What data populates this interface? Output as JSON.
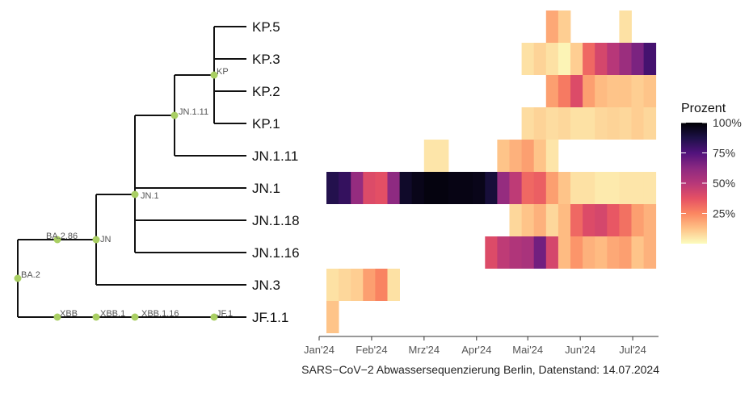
{
  "chart_data": {
    "type": "heatmap",
    "caption": "SARS−CoV−2 Abwassersequenzierung Berlin, Datenstand: 14.07.2024",
    "x_ticks": [
      "Jan'24",
      "Feb'24",
      "Mrz'24",
      "Apr'24",
      "Mai'24",
      "Jun'24",
      "Jul'24"
    ],
    "x_tick_weeks": [
      0,
      4.3,
      8.6,
      12.9,
      17.1,
      21.4,
      25.7
    ],
    "n_weeks": 27,
    "legend": {
      "title": "Prozent",
      "labels": [
        "100%",
        "75%",
        "50%",
        "25%"
      ],
      "values": [
        100,
        75,
        50,
        25
      ]
    },
    "colors": [
      "#fcfdbf",
      "#fec287",
      "#fb8761",
      "#e55064",
      "#b73779",
      "#8c2981",
      "#51127c",
      "#1d1147",
      "#000004"
    ],
    "tree": {
      "tips": [
        "KP.5",
        "KP.3",
        "KP.2",
        "KP.1",
        "JN.1.11",
        "JN.1",
        "JN.1.18",
        "JN.1.16",
        "JN.3",
        "JF.1.1"
      ],
      "node_labels": [
        "KP",
        "JN.1.11",
        "JN.1",
        "JN",
        "BA.2.86",
        "BA.2",
        "XBB",
        "XBB.1",
        "XBB.1.16",
        "JF.1"
      ]
    },
    "series": [
      {
        "name": "KP.5",
        "values": [
          null,
          null,
          null,
          null,
          null,
          null,
          null,
          null,
          null,
          null,
          null,
          null,
          null,
          null,
          null,
          null,
          null,
          null,
          18,
          10,
          null,
          null,
          null,
          null,
          6,
          null,
          null
        ]
      },
      {
        "name": "KP.3",
        "values": [
          null,
          null,
          null,
          null,
          null,
          null,
          null,
          null,
          null,
          null,
          null,
          null,
          null,
          null,
          null,
          null,
          6,
          9,
          6,
          2,
          10,
          32,
          42,
          50,
          58,
          66,
          78
        ]
      },
      {
        "name": "KP.2",
        "values": [
          null,
          null,
          null,
          null,
          null,
          null,
          null,
          null,
          null,
          null,
          null,
          null,
          null,
          null,
          null,
          null,
          null,
          null,
          20,
          28,
          40,
          20,
          14,
          12,
          12,
          10,
          12
        ]
      },
      {
        "name": "KP.1",
        "values": [
          null,
          null,
          null,
          null,
          null,
          null,
          null,
          null,
          null,
          null,
          null,
          null,
          null,
          null,
          null,
          null,
          7,
          9,
          7,
          8,
          6,
          6,
          8,
          9,
          8,
          10,
          8
        ]
      },
      {
        "name": "JN.1.11",
        "values": [
          null,
          null,
          null,
          null,
          null,
          null,
          null,
          null,
          5,
          5,
          null,
          null,
          null,
          null,
          12,
          16,
          20,
          12,
          5,
          null,
          null,
          null,
          null,
          null,
          null,
          null,
          null
        ]
      },
      {
        "name": "JN.1",
        "values": [
          86,
          82,
          60,
          40,
          38,
          62,
          93,
          96,
          98,
          98,
          97,
          97,
          96,
          90,
          60,
          48,
          32,
          34,
          20,
          12,
          6,
          6,
          4,
          4,
          5,
          5,
          5
        ]
      },
      {
        "name": "JN.1.18",
        "values": [
          null,
          null,
          null,
          null,
          null,
          null,
          null,
          null,
          null,
          null,
          null,
          null,
          null,
          null,
          null,
          8,
          12,
          16,
          8,
          14,
          32,
          40,
          42,
          36,
          30,
          20,
          16
        ]
      },
      {
        "name": "JN.1.16",
        "values": [
          null,
          null,
          null,
          null,
          null,
          null,
          null,
          null,
          null,
          null,
          null,
          null,
          null,
          40,
          48,
          52,
          54,
          68,
          42,
          14,
          22,
          16,
          14,
          18,
          20,
          12,
          16
        ]
      },
      {
        "name": "JN.3",
        "values": [
          6,
          8,
          10,
          20,
          26,
          6,
          null,
          null,
          null,
          null,
          null,
          null,
          null,
          null,
          null,
          null,
          null,
          null,
          null,
          null,
          null,
          null,
          null,
          null,
          null,
          null,
          null
        ]
      },
      {
        "name": "JF.1.1",
        "values": [
          12,
          null,
          null,
          null,
          null,
          null,
          null,
          null,
          null,
          null,
          null,
          null,
          null,
          null,
          null,
          null,
          null,
          null,
          null,
          null,
          null,
          null,
          null,
          null,
          null,
          null,
          null
        ]
      }
    ]
  }
}
